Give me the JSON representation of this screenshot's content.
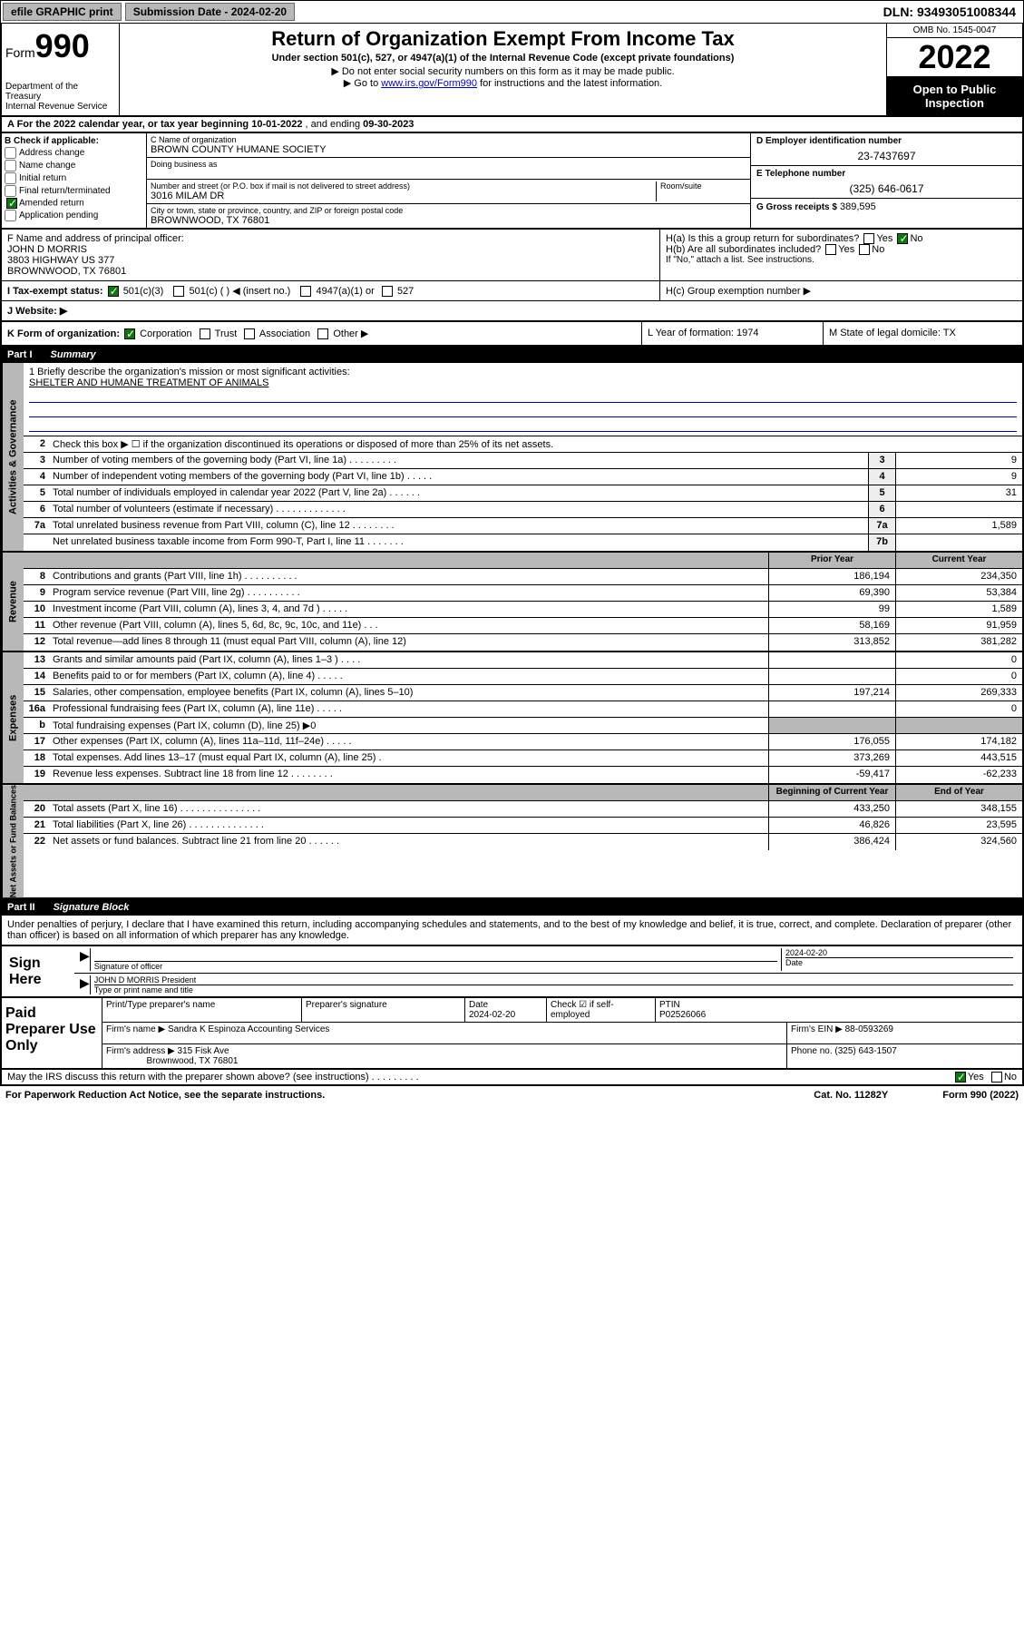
{
  "topbar": {
    "efile": "efile GRAPHIC print",
    "submission_label": "Submission Date - 2024-02-20",
    "dln": "DLN: 93493051008344"
  },
  "header": {
    "form_prefix": "Form",
    "form_num": "990",
    "title": "Return of Organization Exempt From Income Tax",
    "subtitle": "Under section 501(c), 527, or 4947(a)(1) of the Internal Revenue Code (except private foundations)",
    "note1": "▶ Do not enter social security numbers on this form as it may be made public.",
    "note2_pre": "▶ Go to ",
    "note2_link": "www.irs.gov/Form990",
    "note2_post": " for instructions and the latest information.",
    "dept": "Department of the Treasury\nInternal Revenue Service",
    "omb": "OMB No. 1545-0047",
    "year": "2022",
    "open": "Open to Public Inspection"
  },
  "a": {
    "text_pre": "A For the 2022 calendar year, or tax year beginning ",
    "begin": "10-01-2022",
    "mid": " , and ending ",
    "end": "09-30-2023"
  },
  "b": {
    "label": "B Check if applicable:",
    "items": [
      "Address change",
      "Name change",
      "Initial return",
      "Final return/terminated",
      "Amended return",
      "Application pending"
    ],
    "checked_index": 4
  },
  "c": {
    "name_label": "C Name of organization",
    "name": "BROWN COUNTY HUMANE SOCIETY",
    "dba_label": "Doing business as",
    "street_label": "Number and street (or P.O. box if mail is not delivered to street address)",
    "room_label": "Room/suite",
    "street": "3016 MILAM DR",
    "city_label": "City or town, state or province, country, and ZIP or foreign postal code",
    "city": "BROWNWOOD, TX  76801"
  },
  "d": {
    "label": "D Employer identification number",
    "val": "23-7437697"
  },
  "e": {
    "label": "E Telephone number",
    "val": "(325) 646-0617"
  },
  "g": {
    "label": "G Gross receipts $",
    "val": "389,595"
  },
  "f": {
    "label": "F Name and address of principal officer:",
    "name": "JOHN D MORRIS",
    "addr1": "3803 HIGHWAY US 377",
    "addr2": "BROWNWOOD, TX  76801"
  },
  "h": {
    "a": "H(a)  Is this a group return for subordinates?",
    "b": "H(b)  Are all subordinates included?",
    "c_note": "If \"No,\" attach a list. See instructions.",
    "c": "H(c)  Group exemption number ▶",
    "yes": "Yes",
    "no": "No"
  },
  "i": {
    "label": "I  Tax-exempt status:",
    "opts": [
      "501(c)(3)",
      "501(c) (  ) ◀ (insert no.)",
      "4947(a)(1) or",
      "527"
    ]
  },
  "j": {
    "label": "J  Website: ▶"
  },
  "k": {
    "label": "K Form of organization:",
    "opts": [
      "Corporation",
      "Trust",
      "Association",
      "Other ▶"
    ],
    "l": "L Year of formation: 1974",
    "m": "M State of legal domicile: TX"
  },
  "part1": {
    "num": "Part I",
    "title": "Summary"
  },
  "mission": {
    "prompt": "1  Briefly describe the organization's mission or most significant activities:",
    "text": "SHELTER AND HUMANE TREATMENT OF ANIMALS"
  },
  "governance": {
    "label": "Activities & Governance",
    "rows": [
      {
        "n": "2",
        "t": "Check this box ▶ ☐ if the organization discontinued its operations or disposed of more than 25% of its net assets."
      },
      {
        "n": "3",
        "t": "Number of voting members of the governing body (Part VI, line 1a)   .    .    .    .    .    .    .    .    .",
        "box": "3",
        "v": "9"
      },
      {
        "n": "4",
        "t": "Number of independent voting members of the governing body (Part VI, line 1b)   .    .    .    .    .",
        "box": "4",
        "v": "9"
      },
      {
        "n": "5",
        "t": "Total number of individuals employed in calendar year 2022 (Part V, line 2a)   .    .    .    .    .    .",
        "box": "5",
        "v": "31"
      },
      {
        "n": "6",
        "t": "Total number of volunteers (estimate if necessary)   .    .    .    .    .    .    .    .    .    .    .    .    .",
        "box": "6",
        "v": ""
      },
      {
        "n": "7a",
        "t": "Total unrelated business revenue from Part VIII, column (C), line 12   .    .    .    .    .    .    .    .",
        "box": "7a",
        "v": "1,589"
      },
      {
        "n": "",
        "t": "Net unrelated business taxable income from Form 990-T, Part I, line 11   .    .    .    .    .    .    .",
        "box": "7b",
        "v": ""
      }
    ]
  },
  "pycy": {
    "prior": "Prior Year",
    "current": "Current Year"
  },
  "revenue": {
    "label": "Revenue",
    "rows": [
      {
        "n": "8",
        "t": "Contributions and grants (Part VIII, line 1h)   .    .    .    .    .    .    .    .    .    .",
        "p": "186,194",
        "c": "234,350"
      },
      {
        "n": "9",
        "t": "Program service revenue (Part VIII, line 2g)   .    .    .    .    .    .    .    .    .    .",
        "p": "69,390",
        "c": "53,384"
      },
      {
        "n": "10",
        "t": "Investment income (Part VIII, column (A), lines 3, 4, and 7d )   .    .    .    .    .",
        "p": "99",
        "c": "1,589"
      },
      {
        "n": "11",
        "t": "Other revenue (Part VIII, column (A), lines 5, 6d, 8c, 9c, 10c, and 11e)   .    .    .",
        "p": "58,169",
        "c": "91,959"
      },
      {
        "n": "12",
        "t": "Total revenue—add lines 8 through 11 (must equal Part VIII, column (A), line 12)",
        "p": "313,852",
        "c": "381,282"
      }
    ]
  },
  "expenses": {
    "label": "Expenses",
    "rows": [
      {
        "n": "13",
        "t": "Grants and similar amounts paid (Part IX, column (A), lines 1–3 )   .    .    .    .",
        "p": "",
        "c": "0"
      },
      {
        "n": "14",
        "t": "Benefits paid to or for members (Part IX, column (A), line 4)   .    .    .    .    .",
        "p": "",
        "c": "0"
      },
      {
        "n": "15",
        "t": "Salaries, other compensation, employee benefits (Part IX, column (A), lines 5–10)",
        "p": "197,214",
        "c": "269,333"
      },
      {
        "n": "16a",
        "t": "Professional fundraising fees (Part IX, column (A), line 11e)   .    .    .    .    .",
        "p": "",
        "c": "0"
      },
      {
        "n": "b",
        "t": "Total fundraising expenses (Part IX, column (D), line 25) ▶0",
        "p": "shade",
        "c": "shade"
      },
      {
        "n": "17",
        "t": "Other expenses (Part IX, column (A), lines 11a–11d, 11f–24e)   .    .    .    .    .",
        "p": "176,055",
        "c": "174,182"
      },
      {
        "n": "18",
        "t": "Total expenses. Add lines 13–17 (must equal Part IX, column (A), line 25)   .",
        "p": "373,269",
        "c": "443,515"
      },
      {
        "n": "19",
        "t": "Revenue less expenses. Subtract line 18 from line 12   .    .    .    .    .    .    .    .",
        "p": "-59,417",
        "c": "-62,233"
      }
    ]
  },
  "bey": {
    "begin": "Beginning of Current Year",
    "end": "End of Year"
  },
  "netassets": {
    "label": "Net Assets or Fund Balances",
    "rows": [
      {
        "n": "20",
        "t": "Total assets (Part X, line 16)   .    .    .    .    .    .    .    .    .    .    .    .    .    .    .",
        "p": "433,250",
        "c": "348,155"
      },
      {
        "n": "21",
        "t": "Total liabilities (Part X, line 26)   .    .    .    .    .    .    .    .    .    .    .    .    .    .",
        "p": "46,826",
        "c": "23,595"
      },
      {
        "n": "22",
        "t": "Net assets or fund balances. Subtract line 21 from line 20   .    .    .    .    .    .",
        "p": "386,424",
        "c": "324,560"
      }
    ]
  },
  "part2": {
    "num": "Part II",
    "title": "Signature Block"
  },
  "sig_decl": "Under penalties of perjury, I declare that I have examined this return, including accompanying schedules and statements, and to the best of my knowledge and belief, it is true, correct, and complete. Declaration of preparer (other than officer) is based on all information of which preparer has any knowledge.",
  "sign": {
    "here": "Sign Here",
    "sig_label": "Signature of officer",
    "date_label": "Date",
    "date": "2024-02-20",
    "name": "JOHN D MORRIS President",
    "type_label": "Type or print name and title"
  },
  "paid": {
    "title": "Paid Preparer Use Only",
    "h": [
      "Print/Type preparer's name",
      "Preparer's signature",
      "Date",
      "",
      "PTIN"
    ],
    "date": "2024-02-20",
    "check": "Check ☑ if self-employed",
    "ptin": "P02526066",
    "firm_label": "Firm's name    ▶",
    "firm": "Sandra K Espinoza Accounting Services",
    "ein_label": "Firm's EIN ▶",
    "ein": "88-0593269",
    "addr_label": "Firm's address ▶",
    "addr1": "315 Fisk Ave",
    "addr2": "Brownwood, TX  76801",
    "phone_label": "Phone no.",
    "phone": "(325) 643-1507"
  },
  "discuss": {
    "text": "May the IRS discuss this return with the preparer shown above? (see instructions)    .    .    .    .    .    .    .    .    .",
    "yes": "Yes",
    "no": "No"
  },
  "footer": {
    "left": "For Paperwork Reduction Act Notice, see the separate instructions.",
    "mid": "Cat. No. 11282Y",
    "right": "Form 990 (2022)"
  }
}
